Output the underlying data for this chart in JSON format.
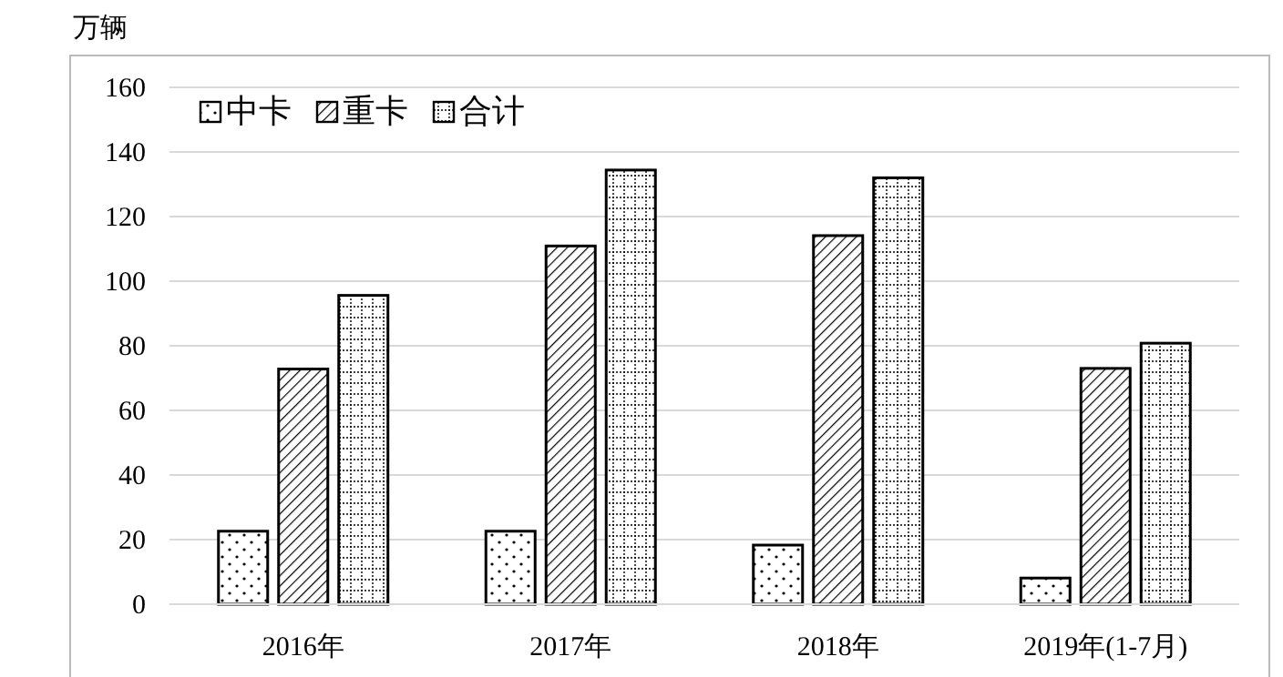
{
  "chart_data": {
    "type": "bar",
    "ylabel": "万辆",
    "categories": [
      "2016年",
      "2017年",
      "2018年",
      "2019年(1-7月)"
    ],
    "series": [
      {
        "name": "中卡",
        "color": "#000000",
        "values": [
          22.6,
          22.6,
          18.3,
          8.1
        ]
      },
      {
        "name": "重卡",
        "color": "#000000",
        "values": [
          72.8,
          110.9,
          114.1,
          73.0
        ]
      },
      {
        "name": "合计",
        "color": "#000000",
        "values": [
          95.6,
          134.4,
          132.0,
          80.8
        ]
      }
    ],
    "ylim": [
      0,
      160
    ],
    "yticks": [
      0,
      20,
      40,
      60,
      80,
      100,
      120,
      140,
      160
    ],
    "grid": "y",
    "legend": "top left"
  }
}
